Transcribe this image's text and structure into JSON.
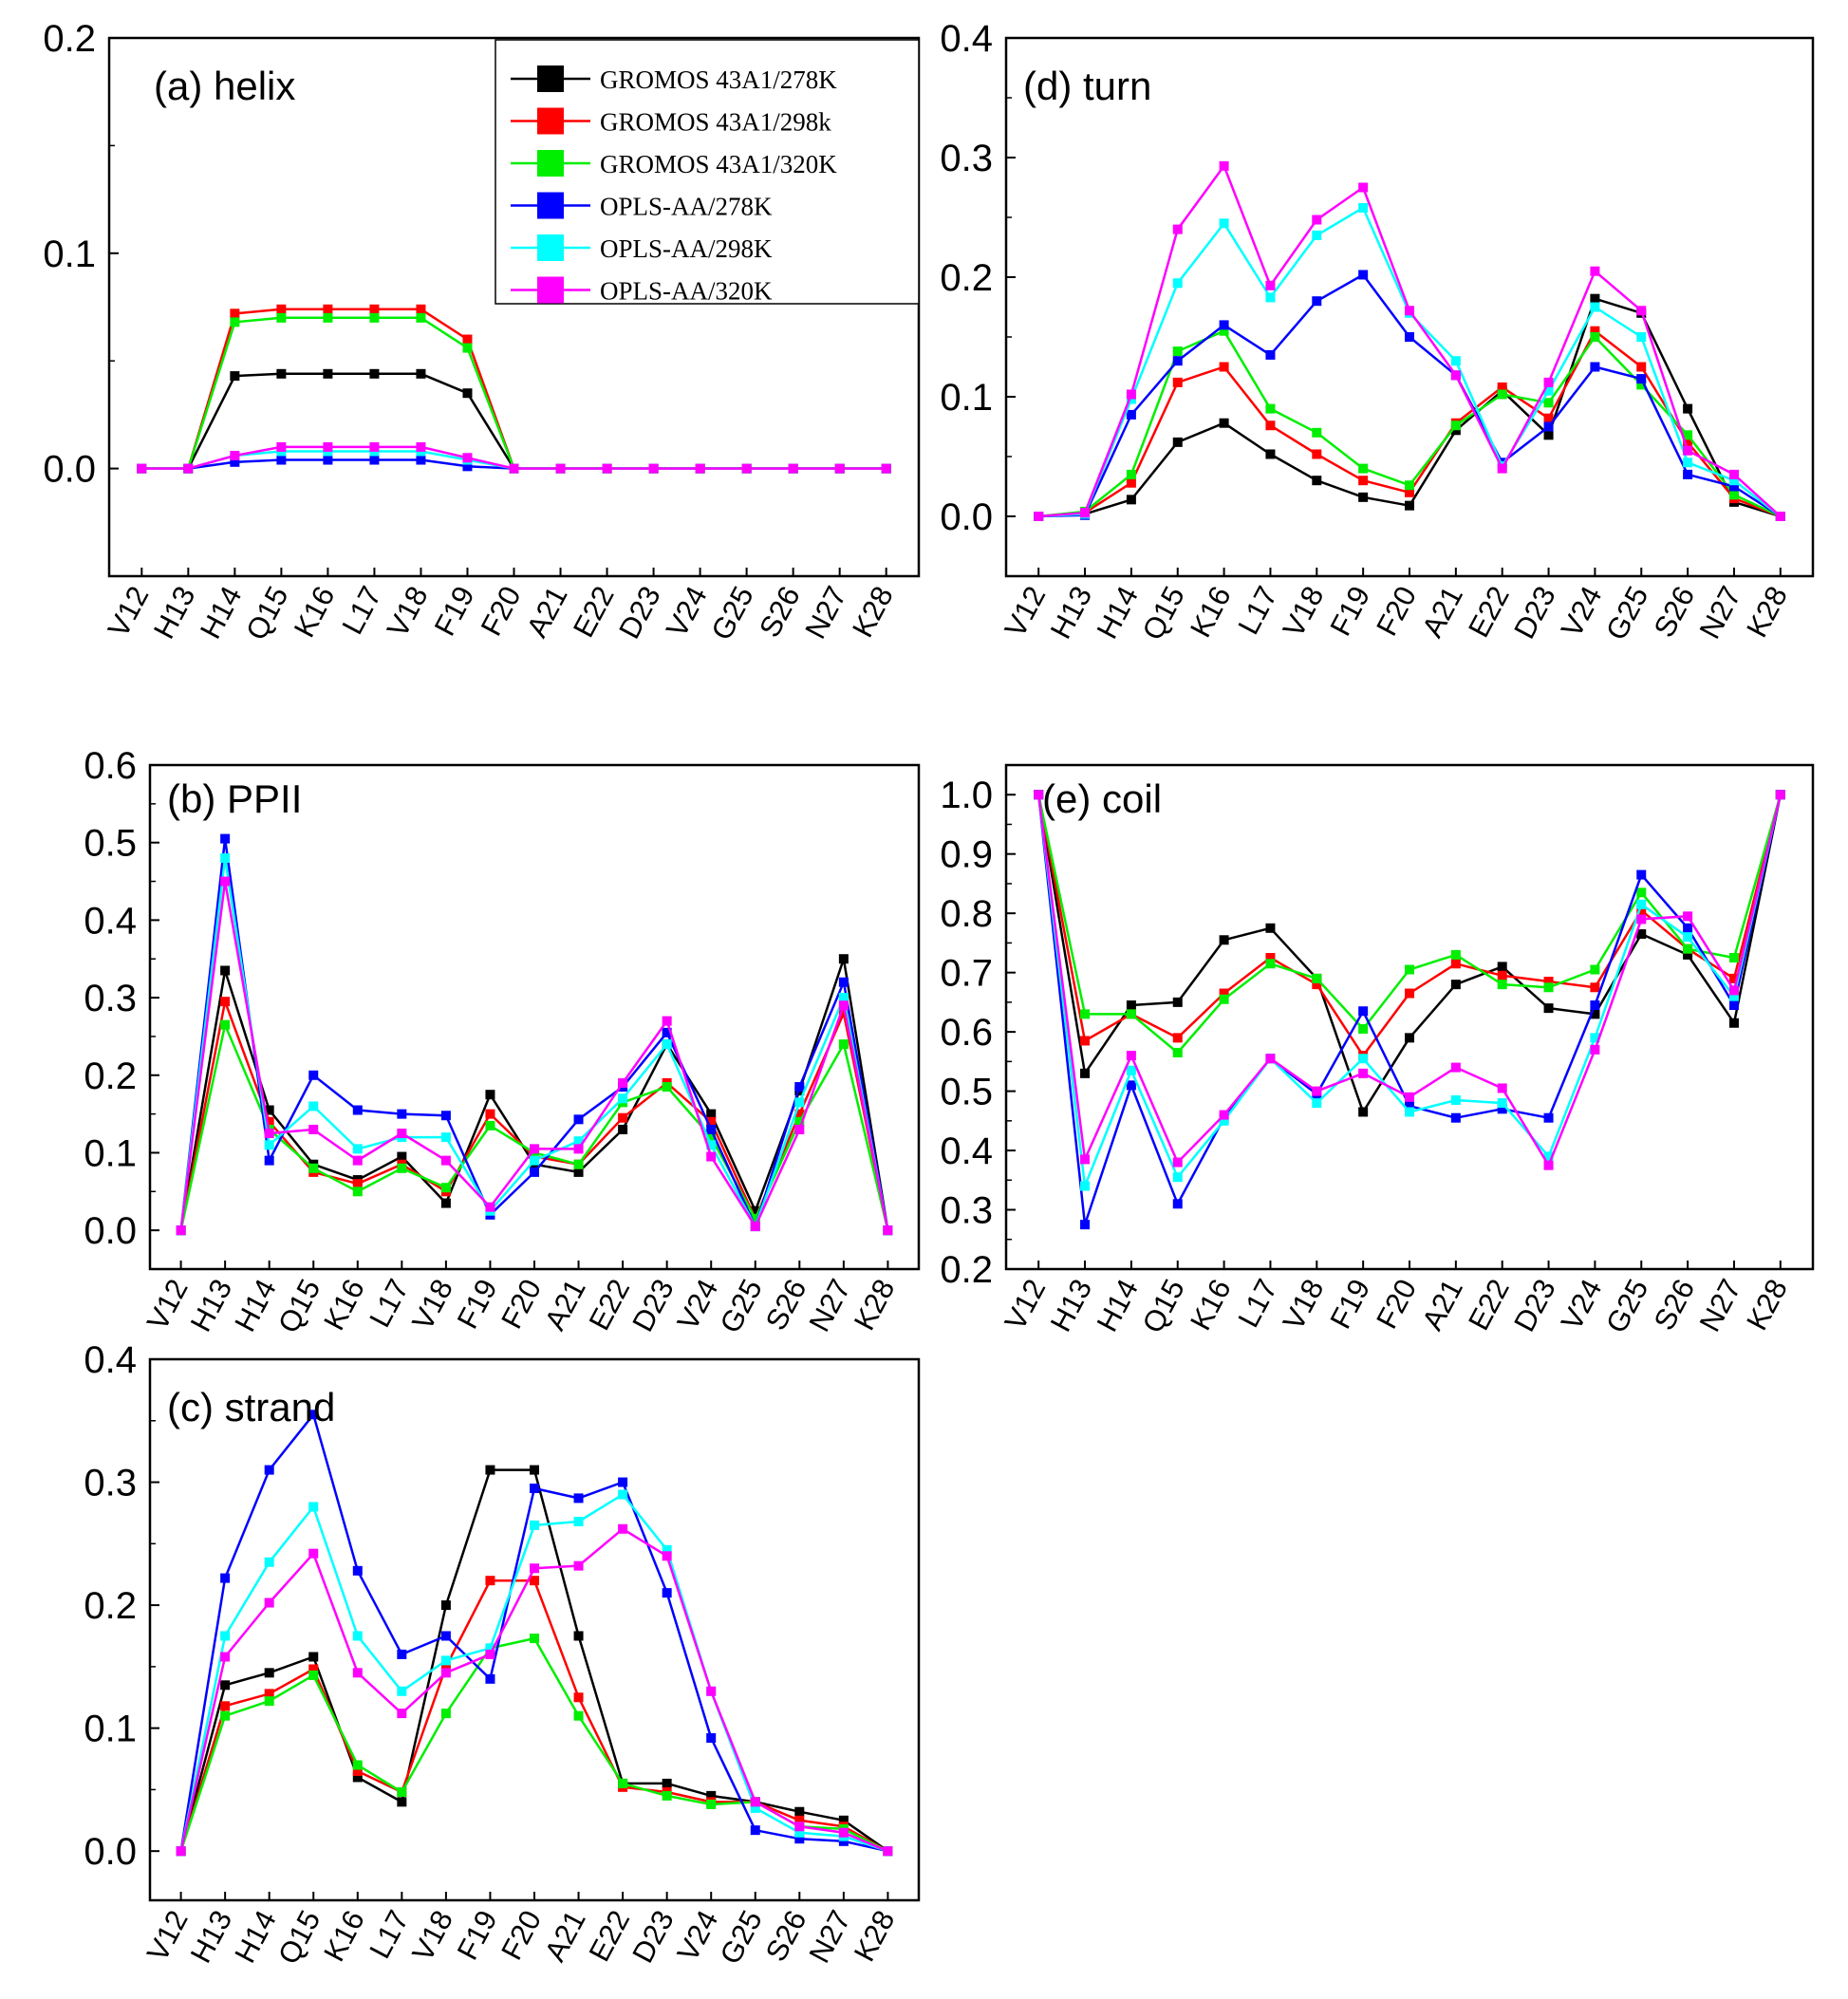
{
  "categories": [
    "V12",
    "H13",
    "H14",
    "Q15",
    "K16",
    "L17",
    "V18",
    "F19",
    "F20",
    "A21",
    "E22",
    "D23",
    "V24",
    "G25",
    "S26",
    "N27",
    "K28"
  ],
  "legend": {
    "entries": [
      {
        "label": "GROMOS 43A1/278K",
        "color": "#000000"
      },
      {
        "label": "GROMOS 43A1/298k",
        "color": "#ff0000"
      },
      {
        "label": "GROMOS 43A1/320K",
        "color": "#00ee00"
      },
      {
        "label": "OPLS-AA/278K",
        "color": "#0000ff"
      },
      {
        "label": "OPLS-AA/298K",
        "color": "#00ffff"
      },
      {
        "label": "OPLS-AA/320K",
        "color": "#ff00ff"
      }
    ]
  },
  "chart_data": [
    {
      "id": "helix",
      "type": "line",
      "title": "(a) helix",
      "ylim": [
        -0.05,
        0.2
      ],
      "yticks": [
        0.0,
        0.1,
        0.2
      ],
      "ytick_labels": [
        "0.0",
        "0.1",
        "0.2"
      ],
      "series": [
        {
          "name": "GROMOS 43A1/278K",
          "color": "#000000",
          "values": [
            0,
            0,
            0.043,
            0.044,
            0.044,
            0.044,
            0.044,
            0.035,
            0,
            0,
            0,
            0,
            0,
            0,
            0,
            0,
            0
          ]
        },
        {
          "name": "GROMOS 43A1/298k",
          "color": "#ff0000",
          "values": [
            0,
            0,
            0.072,
            0.074,
            0.074,
            0.074,
            0.074,
            0.06,
            0,
            0,
            0,
            0,
            0,
            0,
            0,
            0,
            0
          ]
        },
        {
          "name": "GROMOS 43A1/320K",
          "color": "#00ee00",
          "values": [
            0,
            0,
            0.068,
            0.07,
            0.07,
            0.07,
            0.07,
            0.056,
            0,
            0,
            0,
            0,
            0,
            0,
            0,
            0,
            0
          ]
        },
        {
          "name": "OPLS-AA/278K",
          "color": "#0000ff",
          "values": [
            0,
            0,
            0.003,
            0.004,
            0.004,
            0.004,
            0.004,
            0.001,
            0,
            0,
            0,
            0,
            0,
            0,
            0,
            0,
            0
          ]
        },
        {
          "name": "OPLS-AA/298K",
          "color": "#00ffff",
          "values": [
            0,
            0,
            0.006,
            0.008,
            0.008,
            0.008,
            0.008,
            0.004,
            0,
            0,
            0,
            0,
            0,
            0,
            0,
            0,
            0
          ]
        },
        {
          "name": "OPLS-AA/320K",
          "color": "#ff00ff",
          "values": [
            0,
            0,
            0.006,
            0.01,
            0.01,
            0.01,
            0.01,
            0.005,
            0,
            0,
            0,
            0,
            0,
            0,
            0,
            0,
            0
          ]
        }
      ]
    },
    {
      "id": "ppii",
      "type": "line",
      "title": "(b) PPII",
      "ylim": [
        -0.05,
        0.6
      ],
      "yticks": [
        0.0,
        0.1,
        0.2,
        0.3,
        0.4,
        0.5,
        0.6
      ],
      "ytick_labels": [
        "0.0",
        "0.1",
        "0.2",
        "0.3",
        "0.4",
        "0.5",
        "0.6"
      ],
      "series": [
        {
          "name": "GROMOS 43A1/278K",
          "color": "#000000",
          "values": [
            0,
            0.335,
            0.155,
            0.085,
            0.065,
            0.095,
            0.035,
            0.175,
            0.085,
            0.075,
            0.13,
            0.24,
            0.15,
            0.025,
            0.18,
            0.35,
            0
          ]
        },
        {
          "name": "GROMOS 43A1/298k",
          "color": "#ff0000",
          "values": [
            0,
            0.295,
            0.14,
            0.075,
            0.06,
            0.085,
            0.05,
            0.15,
            0.095,
            0.085,
            0.145,
            0.19,
            0.14,
            0.015,
            0.15,
            0.28,
            0
          ]
        },
        {
          "name": "GROMOS 43A1/320K",
          "color": "#00ee00",
          "values": [
            0,
            0.265,
            0.13,
            0.08,
            0.05,
            0.08,
            0.055,
            0.135,
            0.1,
            0.085,
            0.165,
            0.185,
            0.12,
            0.015,
            0.14,
            0.24,
            0
          ]
        },
        {
          "name": "OPLS-AA/278K",
          "color": "#0000ff",
          "values": [
            0,
            0.505,
            0.09,
            0.2,
            0.155,
            0.15,
            0.148,
            0.02,
            0.075,
            0.143,
            0.185,
            0.255,
            0.13,
            0.005,
            0.185,
            0.32,
            0
          ]
        },
        {
          "name": "OPLS-AA/298K",
          "color": "#00ffff",
          "values": [
            0,
            0.48,
            0.11,
            0.16,
            0.105,
            0.12,
            0.12,
            0.025,
            0.09,
            0.115,
            0.17,
            0.24,
            0.11,
            0.005,
            0.165,
            0.3,
            0
          ]
        },
        {
          "name": "OPLS-AA/320K",
          "color": "#ff00ff",
          "values": [
            0,
            0.45,
            0.125,
            0.13,
            0.09,
            0.125,
            0.09,
            0.03,
            0.105,
            0.105,
            0.19,
            0.27,
            0.095,
            0.005,
            0.13,
            0.29,
            0
          ]
        }
      ]
    },
    {
      "id": "strand",
      "type": "line",
      "title": "(c) strand",
      "ylim": [
        -0.04,
        0.4
      ],
      "yticks": [
        0.0,
        0.1,
        0.2,
        0.3,
        0.4
      ],
      "ytick_labels": [
        "0.0",
        "0.1",
        "0.2",
        "0.3",
        "0.4"
      ],
      "series": [
        {
          "name": "GROMOS 43A1/278K",
          "color": "#000000",
          "values": [
            0,
            0.135,
            0.145,
            0.158,
            0.06,
            0.04,
            0.2,
            0.31,
            0.31,
            0.175,
            0.055,
            0.055,
            0.045,
            0.04,
            0.032,
            0.025,
            0
          ]
        },
        {
          "name": "GROMOS 43A1/298k",
          "color": "#ff0000",
          "values": [
            0,
            0.118,
            0.128,
            0.148,
            0.065,
            0.048,
            0.15,
            0.22,
            0.22,
            0.125,
            0.052,
            0.048,
            0.04,
            0.04,
            0.025,
            0.02,
            0
          ]
        },
        {
          "name": "GROMOS 43A1/320K",
          "color": "#00ee00",
          "values": [
            0,
            0.11,
            0.122,
            0.143,
            0.07,
            0.048,
            0.112,
            0.165,
            0.173,
            0.11,
            0.055,
            0.045,
            0.038,
            0.04,
            0.02,
            0.018,
            0
          ]
        },
        {
          "name": "OPLS-AA/278K",
          "color": "#0000ff",
          "values": [
            0,
            0.222,
            0.31,
            0.355,
            0.228,
            0.16,
            0.175,
            0.14,
            0.295,
            0.287,
            0.3,
            0.21,
            0.092,
            0.017,
            0.01,
            0.008,
            0
          ]
        },
        {
          "name": "OPLS-AA/298K",
          "color": "#00ffff",
          "values": [
            0,
            0.175,
            0.235,
            0.28,
            0.175,
            0.13,
            0.155,
            0.165,
            0.265,
            0.268,
            0.29,
            0.245,
            0.13,
            0.035,
            0.015,
            0.012,
            0
          ]
        },
        {
          "name": "OPLS-AA/320K",
          "color": "#ff00ff",
          "values": [
            0,
            0.158,
            0.202,
            0.242,
            0.145,
            0.112,
            0.145,
            0.16,
            0.23,
            0.232,
            0.262,
            0.24,
            0.13,
            0.04,
            0.02,
            0.015,
            0
          ]
        }
      ]
    },
    {
      "id": "turn",
      "type": "line",
      "title": "(d) turn",
      "ylim": [
        -0.05,
        0.4
      ],
      "yticks": [
        0.0,
        0.1,
        0.2,
        0.3,
        0.4
      ],
      "ytick_labels": [
        "0.0",
        "0.1",
        "0.2",
        "0.3",
        "0.4"
      ],
      "series": [
        {
          "name": "GROMOS 43A1/278K",
          "color": "#000000",
          "values": [
            0,
            0.002,
            0.014,
            0.062,
            0.078,
            0.052,
            0.03,
            0.016,
            0.009,
            0.072,
            0.105,
            0.068,
            0.182,
            0.17,
            0.09,
            0.012,
            0
          ]
        },
        {
          "name": "GROMOS 43A1/298k",
          "color": "#ff0000",
          "values": [
            0,
            0.003,
            0.028,
            0.112,
            0.125,
            0.076,
            0.052,
            0.03,
            0.02,
            0.078,
            0.108,
            0.082,
            0.155,
            0.125,
            0.062,
            0.015,
            0
          ]
        },
        {
          "name": "GROMOS 43A1/320K",
          "color": "#00ee00",
          "values": [
            0,
            0.004,
            0.035,
            0.138,
            0.155,
            0.09,
            0.07,
            0.04,
            0.026,
            0.076,
            0.102,
            0.095,
            0.15,
            0.11,
            0.068,
            0.018,
            0
          ]
        },
        {
          "name": "OPLS-AA/278K",
          "color": "#0000ff",
          "values": [
            0,
            0.001,
            0.085,
            0.13,
            0.16,
            0.135,
            0.18,
            0.202,
            0.15,
            0.118,
            0.045,
            0.075,
            0.125,
            0.115,
            0.035,
            0.025,
            0
          ]
        },
        {
          "name": "OPLS-AA/298K",
          "color": "#00ffff",
          "values": [
            0,
            0.002,
            0.098,
            0.195,
            0.245,
            0.183,
            0.235,
            0.258,
            0.17,
            0.13,
            0.042,
            0.105,
            0.175,
            0.15,
            0.045,
            0.03,
            0
          ]
        },
        {
          "name": "OPLS-AA/320K",
          "color": "#ff00ff",
          "values": [
            0,
            0.003,
            0.102,
            0.24,
            0.293,
            0.193,
            0.248,
            0.275,
            0.172,
            0.118,
            0.04,
            0.112,
            0.205,
            0.172,
            0.055,
            0.035,
            0
          ]
        }
      ]
    },
    {
      "id": "coil",
      "type": "line",
      "title": "(e) coil",
      "ylim": [
        0.2,
        1.05
      ],
      "yticks": [
        0.2,
        0.3,
        0.4,
        0.5,
        0.6,
        0.7,
        0.8,
        0.9,
        1.0
      ],
      "ytick_labels": [
        "0.2",
        "0.3",
        "0.4",
        "0.5",
        "0.6",
        "0.7",
        "0.8",
        "0.9",
        "1.0"
      ],
      "series": [
        {
          "name": "GROMOS 43A1/278K",
          "color": "#000000",
          "values": [
            1.0,
            0.53,
            0.645,
            0.65,
            0.755,
            0.775,
            0.69,
            0.465,
            0.59,
            0.68,
            0.71,
            0.64,
            0.63,
            0.765,
            0.73,
            0.615,
            1.0
          ]
        },
        {
          "name": "GROMOS 43A1/298k",
          "color": "#ff0000",
          "values": [
            1.0,
            0.585,
            0.63,
            0.59,
            0.665,
            0.725,
            0.68,
            0.56,
            0.665,
            0.715,
            0.695,
            0.685,
            0.675,
            0.805,
            0.74,
            0.69,
            1.0
          ]
        },
        {
          "name": "GROMOS 43A1/320K",
          "color": "#00ee00",
          "values": [
            1.0,
            0.63,
            0.63,
            0.565,
            0.655,
            0.715,
            0.69,
            0.605,
            0.705,
            0.73,
            0.68,
            0.675,
            0.705,
            0.835,
            0.74,
            0.725,
            1.0
          ]
        },
        {
          "name": "OPLS-AA/278K",
          "color": "#0000ff",
          "values": [
            1.0,
            0.275,
            0.51,
            0.31,
            0.455,
            0.555,
            0.495,
            0.635,
            0.475,
            0.455,
            0.47,
            0.455,
            0.645,
            0.865,
            0.775,
            0.645,
            1.0
          ]
        },
        {
          "name": "OPLS-AA/298K",
          "color": "#00ffff",
          "values": [
            1.0,
            0.34,
            0.535,
            0.355,
            0.45,
            0.555,
            0.48,
            0.555,
            0.465,
            0.485,
            0.48,
            0.39,
            0.59,
            0.815,
            0.76,
            0.66,
            1.0
          ]
        },
        {
          "name": "OPLS-AA/320K",
          "color": "#ff00ff",
          "values": [
            1.0,
            0.385,
            0.56,
            0.38,
            0.46,
            0.555,
            0.5,
            0.53,
            0.49,
            0.54,
            0.505,
            0.375,
            0.57,
            0.79,
            0.795,
            0.67,
            1.0
          ]
        }
      ]
    }
  ]
}
